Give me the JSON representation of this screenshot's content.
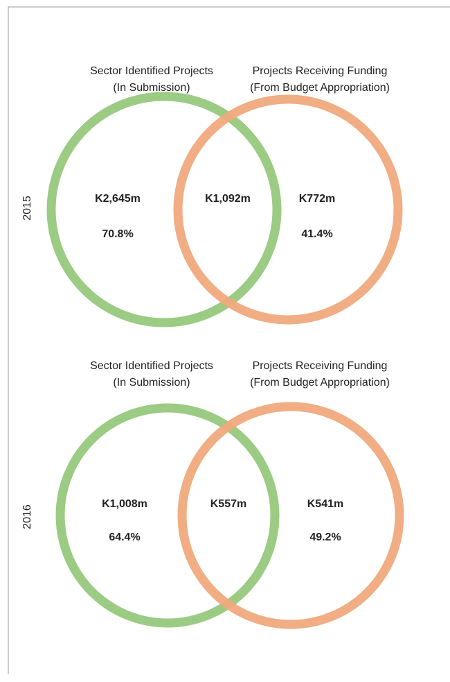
{
  "panels": [
    {
      "year": "2015",
      "left_label": [
        "Sector Identified Projects",
        "(In Submission)"
      ],
      "right_label": [
        "Projects Receiving Funding",
        "(From Budget Appropriation)"
      ],
      "left_value": "K2,645m",
      "left_percent": "70.8%",
      "intersection_value": "K1,092m",
      "right_value": "K772m",
      "right_percent": "41.4%"
    },
    {
      "year": "2016",
      "left_label": [
        "Sector Identified Projects",
        "(In Submission)"
      ],
      "right_label": [
        "Projects Receiving Funding",
        "(From Budget Appropriation)"
      ],
      "left_value": "K1,008m",
      "left_percent": "64.4%",
      "intersection_value": "K557m",
      "right_value": "K541m",
      "right_percent": "49.2%"
    }
  ]
}
